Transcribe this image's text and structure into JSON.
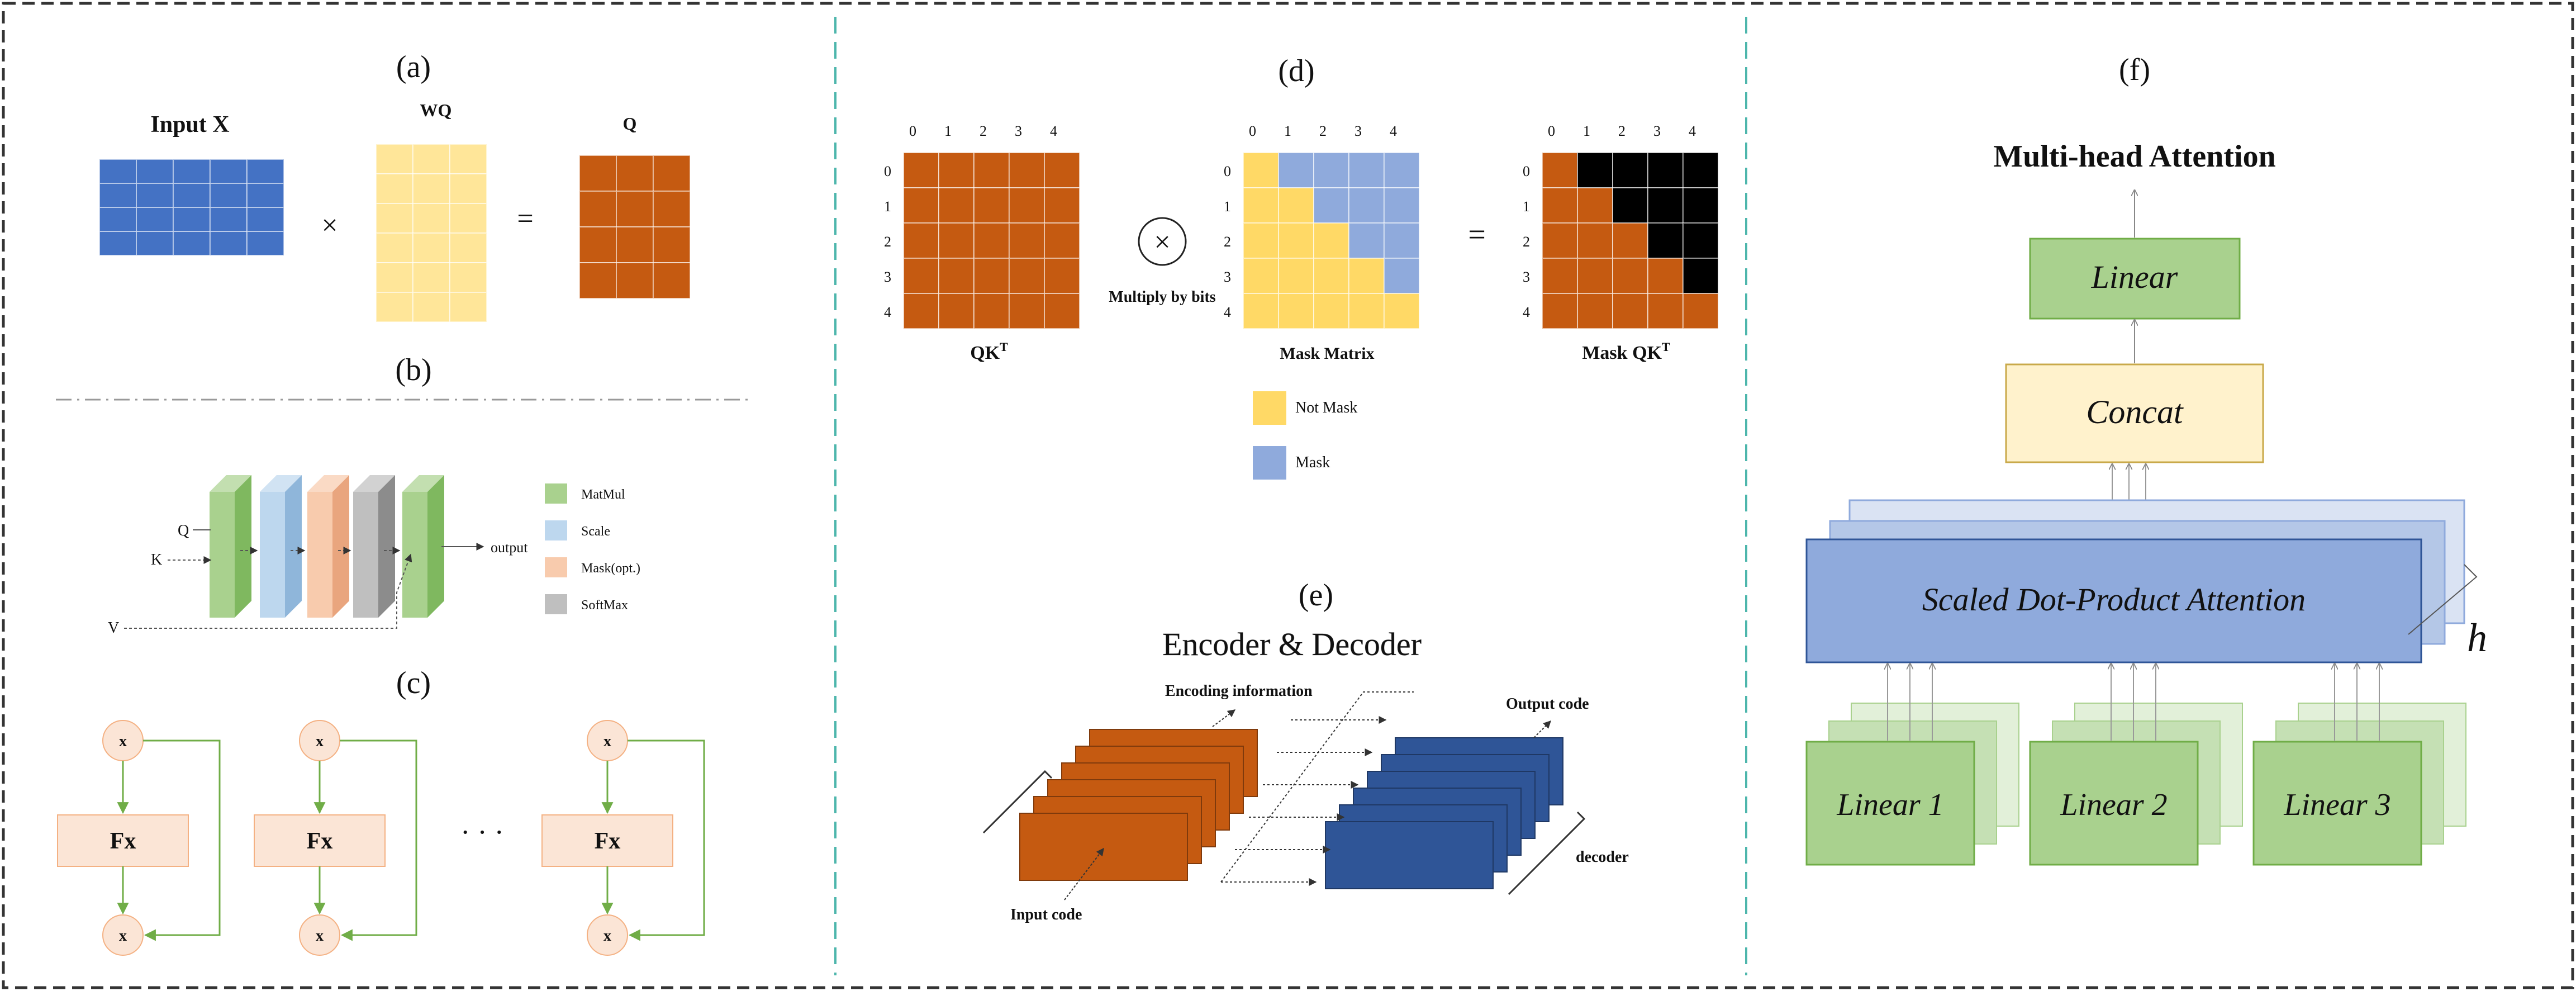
{
  "panel_labels": {
    "a": "(a)",
    "b": "(b)",
    "c": "(c)",
    "d": "(d)",
    "e": "(e)",
    "f": "(f)"
  },
  "panel_a": {
    "input_label": "Input X",
    "weight_label": "WQ",
    "output_label": "Q",
    "times_sign": "×",
    "equals_sign": "=",
    "colors": {
      "input": "#4472C4",
      "weight": "#FFE699",
      "output": "#C55A11"
    }
  },
  "panel_b": {
    "input_q": "Q",
    "input_k": "K",
    "input_v": "V",
    "output_label": "output",
    "legend": [
      {
        "label": "MatMul",
        "color": "#A9D18E"
      },
      {
        "label": "Scale",
        "color": "#BDD7EE"
      },
      {
        "label": "Mask(opt.)",
        "color": "#F8CBAD"
      },
      {
        "label": "SoftMax",
        "color": "#BFBFBF"
      }
    ]
  },
  "panel_c": {
    "node_label": "x",
    "block_label": "Fx",
    "ellipsis": "· · ·",
    "colors": {
      "node": "#FBE5D6",
      "block": "#FBE5D6",
      "arrow": "#70AD47"
    }
  },
  "panel_d": {
    "tick_labels": [
      "0",
      "1",
      "2",
      "3",
      "4"
    ],
    "qk_title": "QK",
    "qk_sup": "T",
    "mask_title": "Mask Matrix",
    "masked_title": "Mask QK",
    "masked_sup": "T",
    "op_symbol": "×",
    "op_label": "Multiply by bits",
    "equals_sign": "=",
    "legend": [
      {
        "label": "Not Mask",
        "color": "#FFD966"
      },
      {
        "label": "Mask",
        "color": "#8FAADC"
      }
    ],
    "colors": {
      "qk": "#C55A11",
      "masked": "#000000"
    }
  },
  "panel_e": {
    "title": "Encoder & Decoder",
    "encoding_label": "Encoding information",
    "output_label": "Output code",
    "input_label": "Input code",
    "decoder_label": "decoder",
    "colors": {
      "encoder": "#C55A11",
      "decoder": "#2F5597"
    }
  },
  "panel_f": {
    "title": "Multi-head Attention",
    "linear_top": "Linear",
    "concat": "Concat",
    "attention": "Scaled Dot-Product Attention",
    "heads_symbol": "h",
    "linears": [
      "Linear 1",
      "Linear 2",
      "Linear 3"
    ],
    "colors": {
      "linear": "#A9D18E",
      "concat": "#FFF2CC",
      "attention": "#8FAADC"
    }
  }
}
